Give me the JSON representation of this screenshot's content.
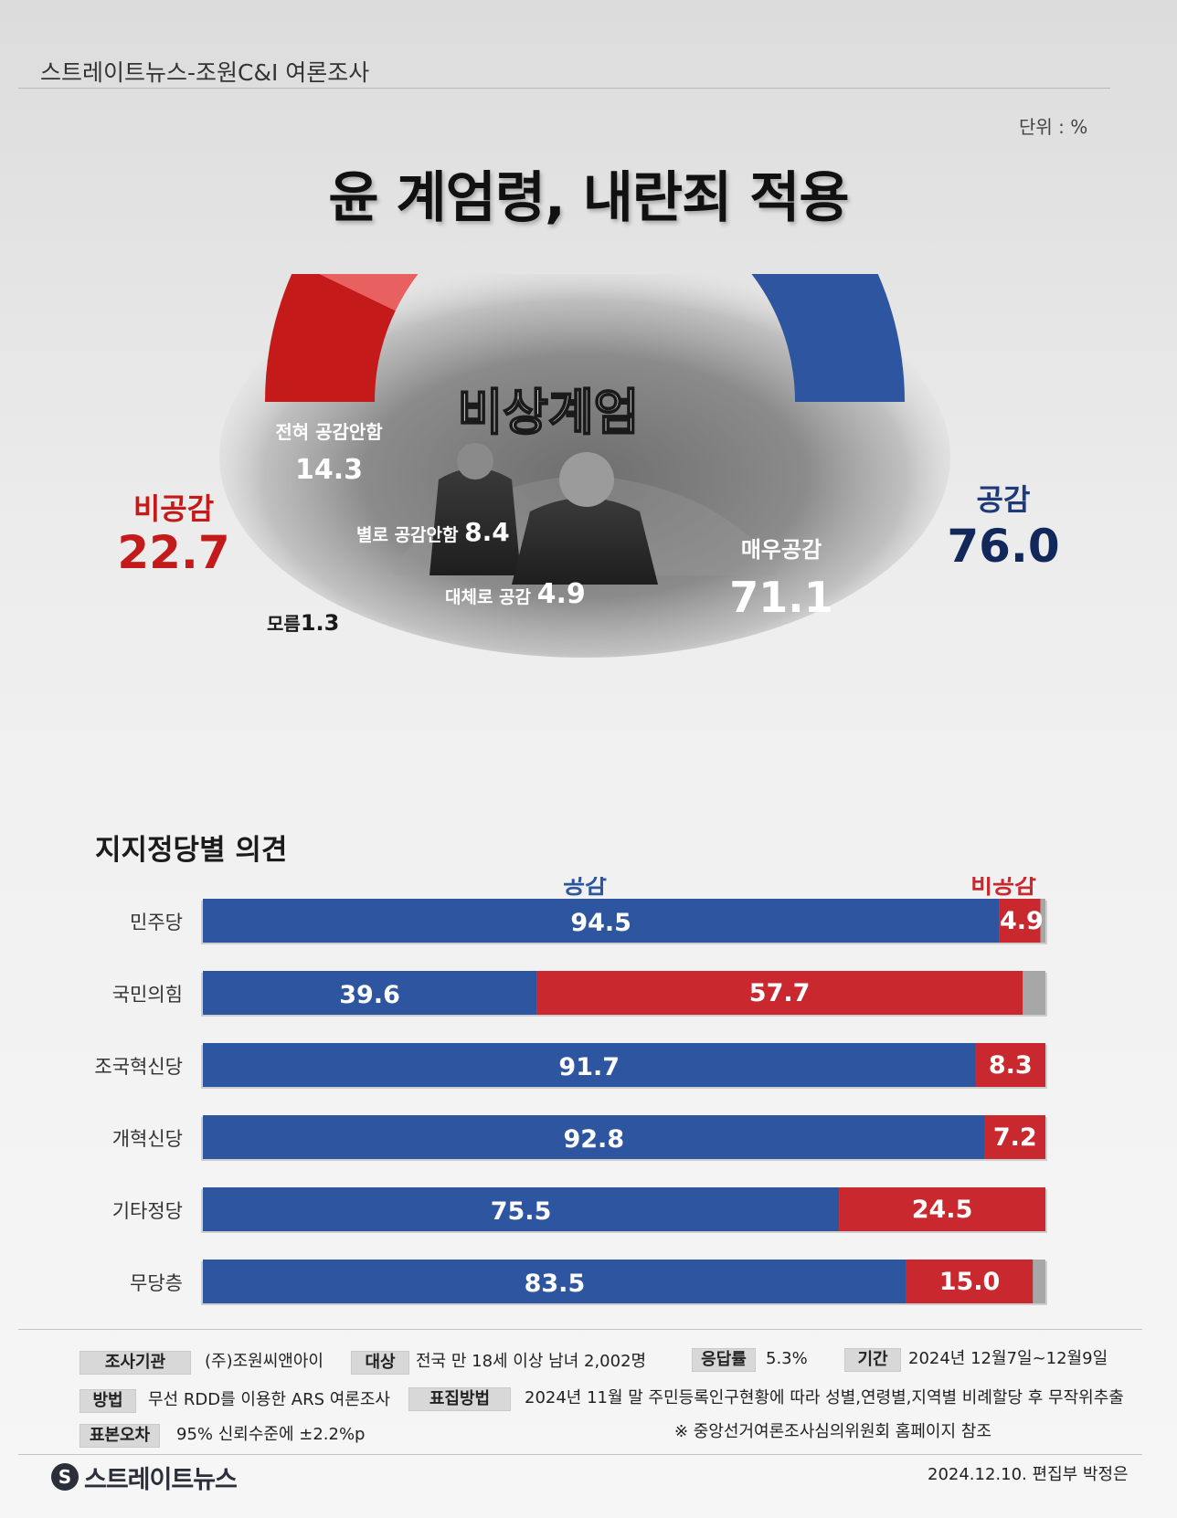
{
  "header": {
    "source": "스트레이트뉴스-조원C&I 여론조사",
    "unit": "단위 : %",
    "title": "윤 계엄령,  내란죄 적용"
  },
  "photo": {
    "caption": "비상계엄"
  },
  "colors": {
    "strong_agree": "#2e55a0",
    "somewhat_agree": "#2f7fc4",
    "dont_know": "#a8a8a8",
    "somewhat_disagree": "#e86060",
    "strong_disagree": "#c51a1a",
    "agree_total": "#1f3a78",
    "disagree_total": "#c51a1a"
  },
  "chart_data": [
    {
      "type": "pie",
      "variant": "semi-donut",
      "slices": [
        {
          "label": "전혀 공감안함",
          "value": 14.3
        },
        {
          "label": "별로 공감안함",
          "value": 8.4
        },
        {
          "label": "모름",
          "value": 1.3
        },
        {
          "label": "대체로 공감",
          "value": 4.9
        },
        {
          "label": "매우공감",
          "value": 71.1
        }
      ],
      "totals": [
        {
          "label": "비공감",
          "value": 22.7
        },
        {
          "label": "공감",
          "value": 76.0
        }
      ]
    },
    {
      "type": "bar",
      "orientation": "horizontal",
      "stacked": true,
      "title": "지지정당별 의견",
      "categories": [
        "민주당",
        "국민의힘",
        "조국혁신당",
        "개혁신당",
        "기타정당",
        "무당층"
      ],
      "series": [
        {
          "name": "공감",
          "values": [
            94.5,
            39.6,
            91.7,
            92.8,
            75.5,
            83.5
          ]
        },
        {
          "name": "비공감",
          "values": [
            4.9,
            57.7,
            8.3,
            7.2,
            24.5,
            15.0
          ]
        }
      ],
      "xlim": [
        0,
        100
      ]
    }
  ],
  "info": {
    "org_label": "조사기관",
    "org_value": "(주)조원씨앤아이",
    "target_label": "대상",
    "target_value": "전국 만 18세 이상 남녀 2,002명",
    "response_label": "응답률",
    "response_value": "5.3%",
    "period_label": "기간",
    "period_value": "2024년 12월7일~12월9일",
    "method_label": "방법",
    "method_value": "무선 RDD를 이용한 ARS 여론조사",
    "sampling_label": "표집방법",
    "sampling_value": "2024년 11월 말 주민등록인구현황에 따라 성별,연령별,지역별 비례할당 후 무작위추출",
    "error_label": "표본오차",
    "error_value": "95% 신뢰수준에 ±2.2%p",
    "note": "※ 중앙선거여론조사심의위원회 홈페이지 참조"
  },
  "footer": {
    "logo_mark": "S",
    "logo_text": "스트레이트뉴스",
    "credit": "2024.12.10. 편집부 박정은"
  }
}
